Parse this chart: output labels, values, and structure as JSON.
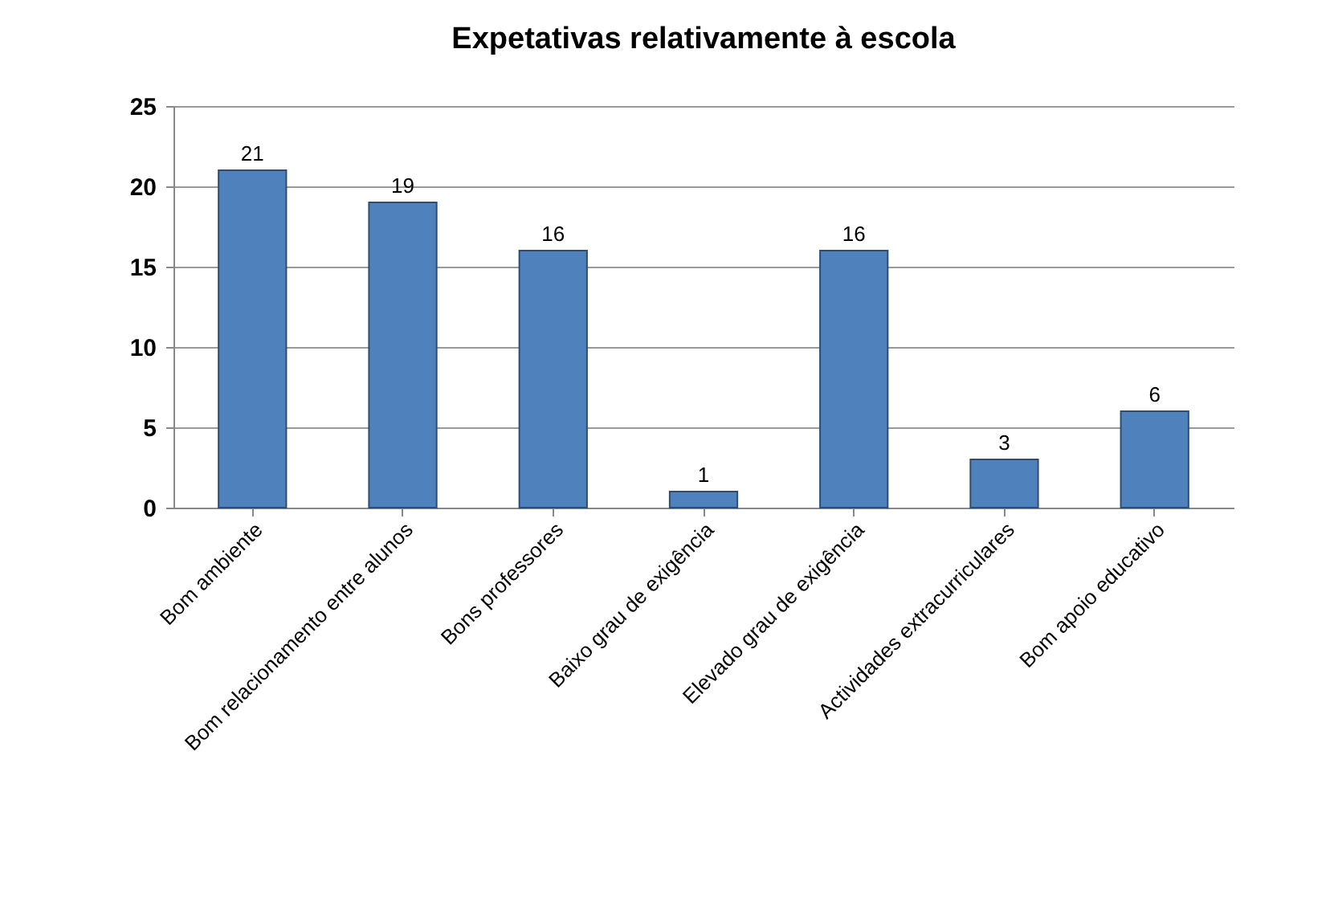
{
  "chart_data": {
    "type": "bar",
    "title": "Expetativas relativamente à escola",
    "categories": [
      "Bom ambiente",
      "Bom relacionamento entre alunos",
      "Bons professores",
      "Baixo grau de exigência",
      "Elevado grau de exigência",
      "Actividades extracurriculares",
      "Bom apoio educativo"
    ],
    "values": [
      21,
      19,
      16,
      1,
      16,
      3,
      6
    ],
    "color": "#4f81bd",
    "ylim": [
      0,
      25
    ],
    "yticks": [
      0,
      5,
      10,
      15,
      20,
      25
    ],
    "grid": "y",
    "data_labels": true
  }
}
